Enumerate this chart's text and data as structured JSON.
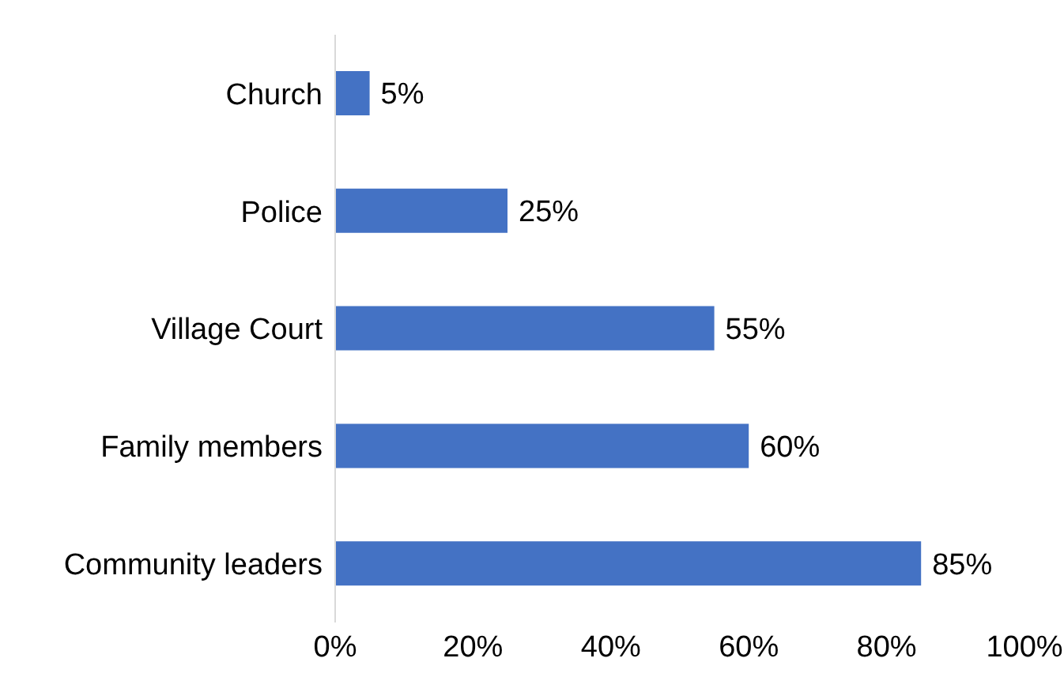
{
  "chart_data": {
    "type": "bar",
    "orientation": "horizontal",
    "categories": [
      "Church",
      "Police",
      "Village Court",
      "Family members",
      "Community leaders"
    ],
    "values": [
      5,
      25,
      55,
      60,
      85
    ],
    "color": "#4472c4",
    "value_labels": [
      "5%",
      "25%",
      "55%",
      "60%",
      "85%"
    ],
    "xlim": [
      0,
      100
    ],
    "xticks": [
      {
        "value": 0,
        "label": "0%"
      },
      {
        "value": 20,
        "label": "20%"
      },
      {
        "value": 40,
        "label": "40%"
      },
      {
        "value": 60,
        "label": "60%"
      },
      {
        "value": 80,
        "label": "80%"
      },
      {
        "value": 100,
        "label": "100%"
      }
    ],
    "grid": false,
    "legend": false
  }
}
